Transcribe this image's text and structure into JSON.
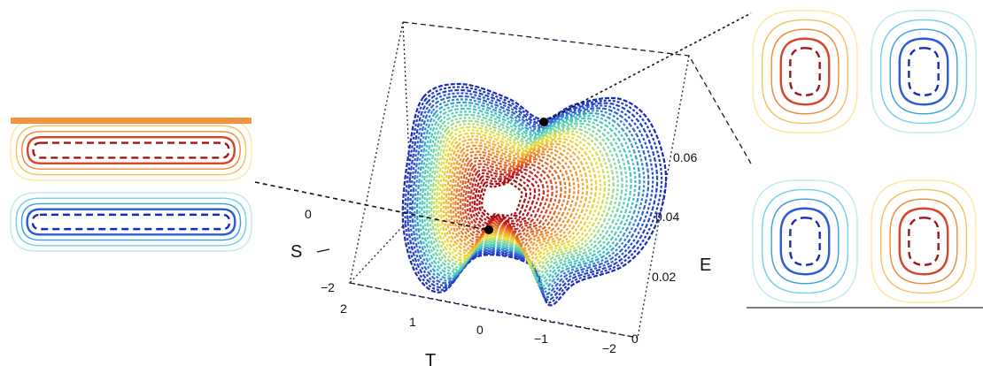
{
  "axes": {
    "s_label": "S",
    "t_label": "T",
    "e_label": "E",
    "s_ticks": [
      "0",
      "−2",
      "2"
    ],
    "t_ticks": [
      "1",
      "0",
      "−1",
      "−2"
    ],
    "e_ticks": [
      "0.06",
      "0.04",
      "0.02",
      "0"
    ]
  },
  "colors": {
    "high": "#c0141a",
    "mid_high": "#f08020",
    "mid": "#e8e23a",
    "mid_low": "#3ec8c0",
    "low": "#1a2ab8",
    "frame": "#1a1a3a"
  },
  "insets": [
    {
      "id": "left-top",
      "sign": "positive"
    },
    {
      "id": "left-bottom",
      "sign": "negative"
    },
    {
      "id": "right-top",
      "sign": "positive-negative"
    },
    {
      "id": "right-bottom",
      "sign": "negative-positive"
    }
  ]
}
